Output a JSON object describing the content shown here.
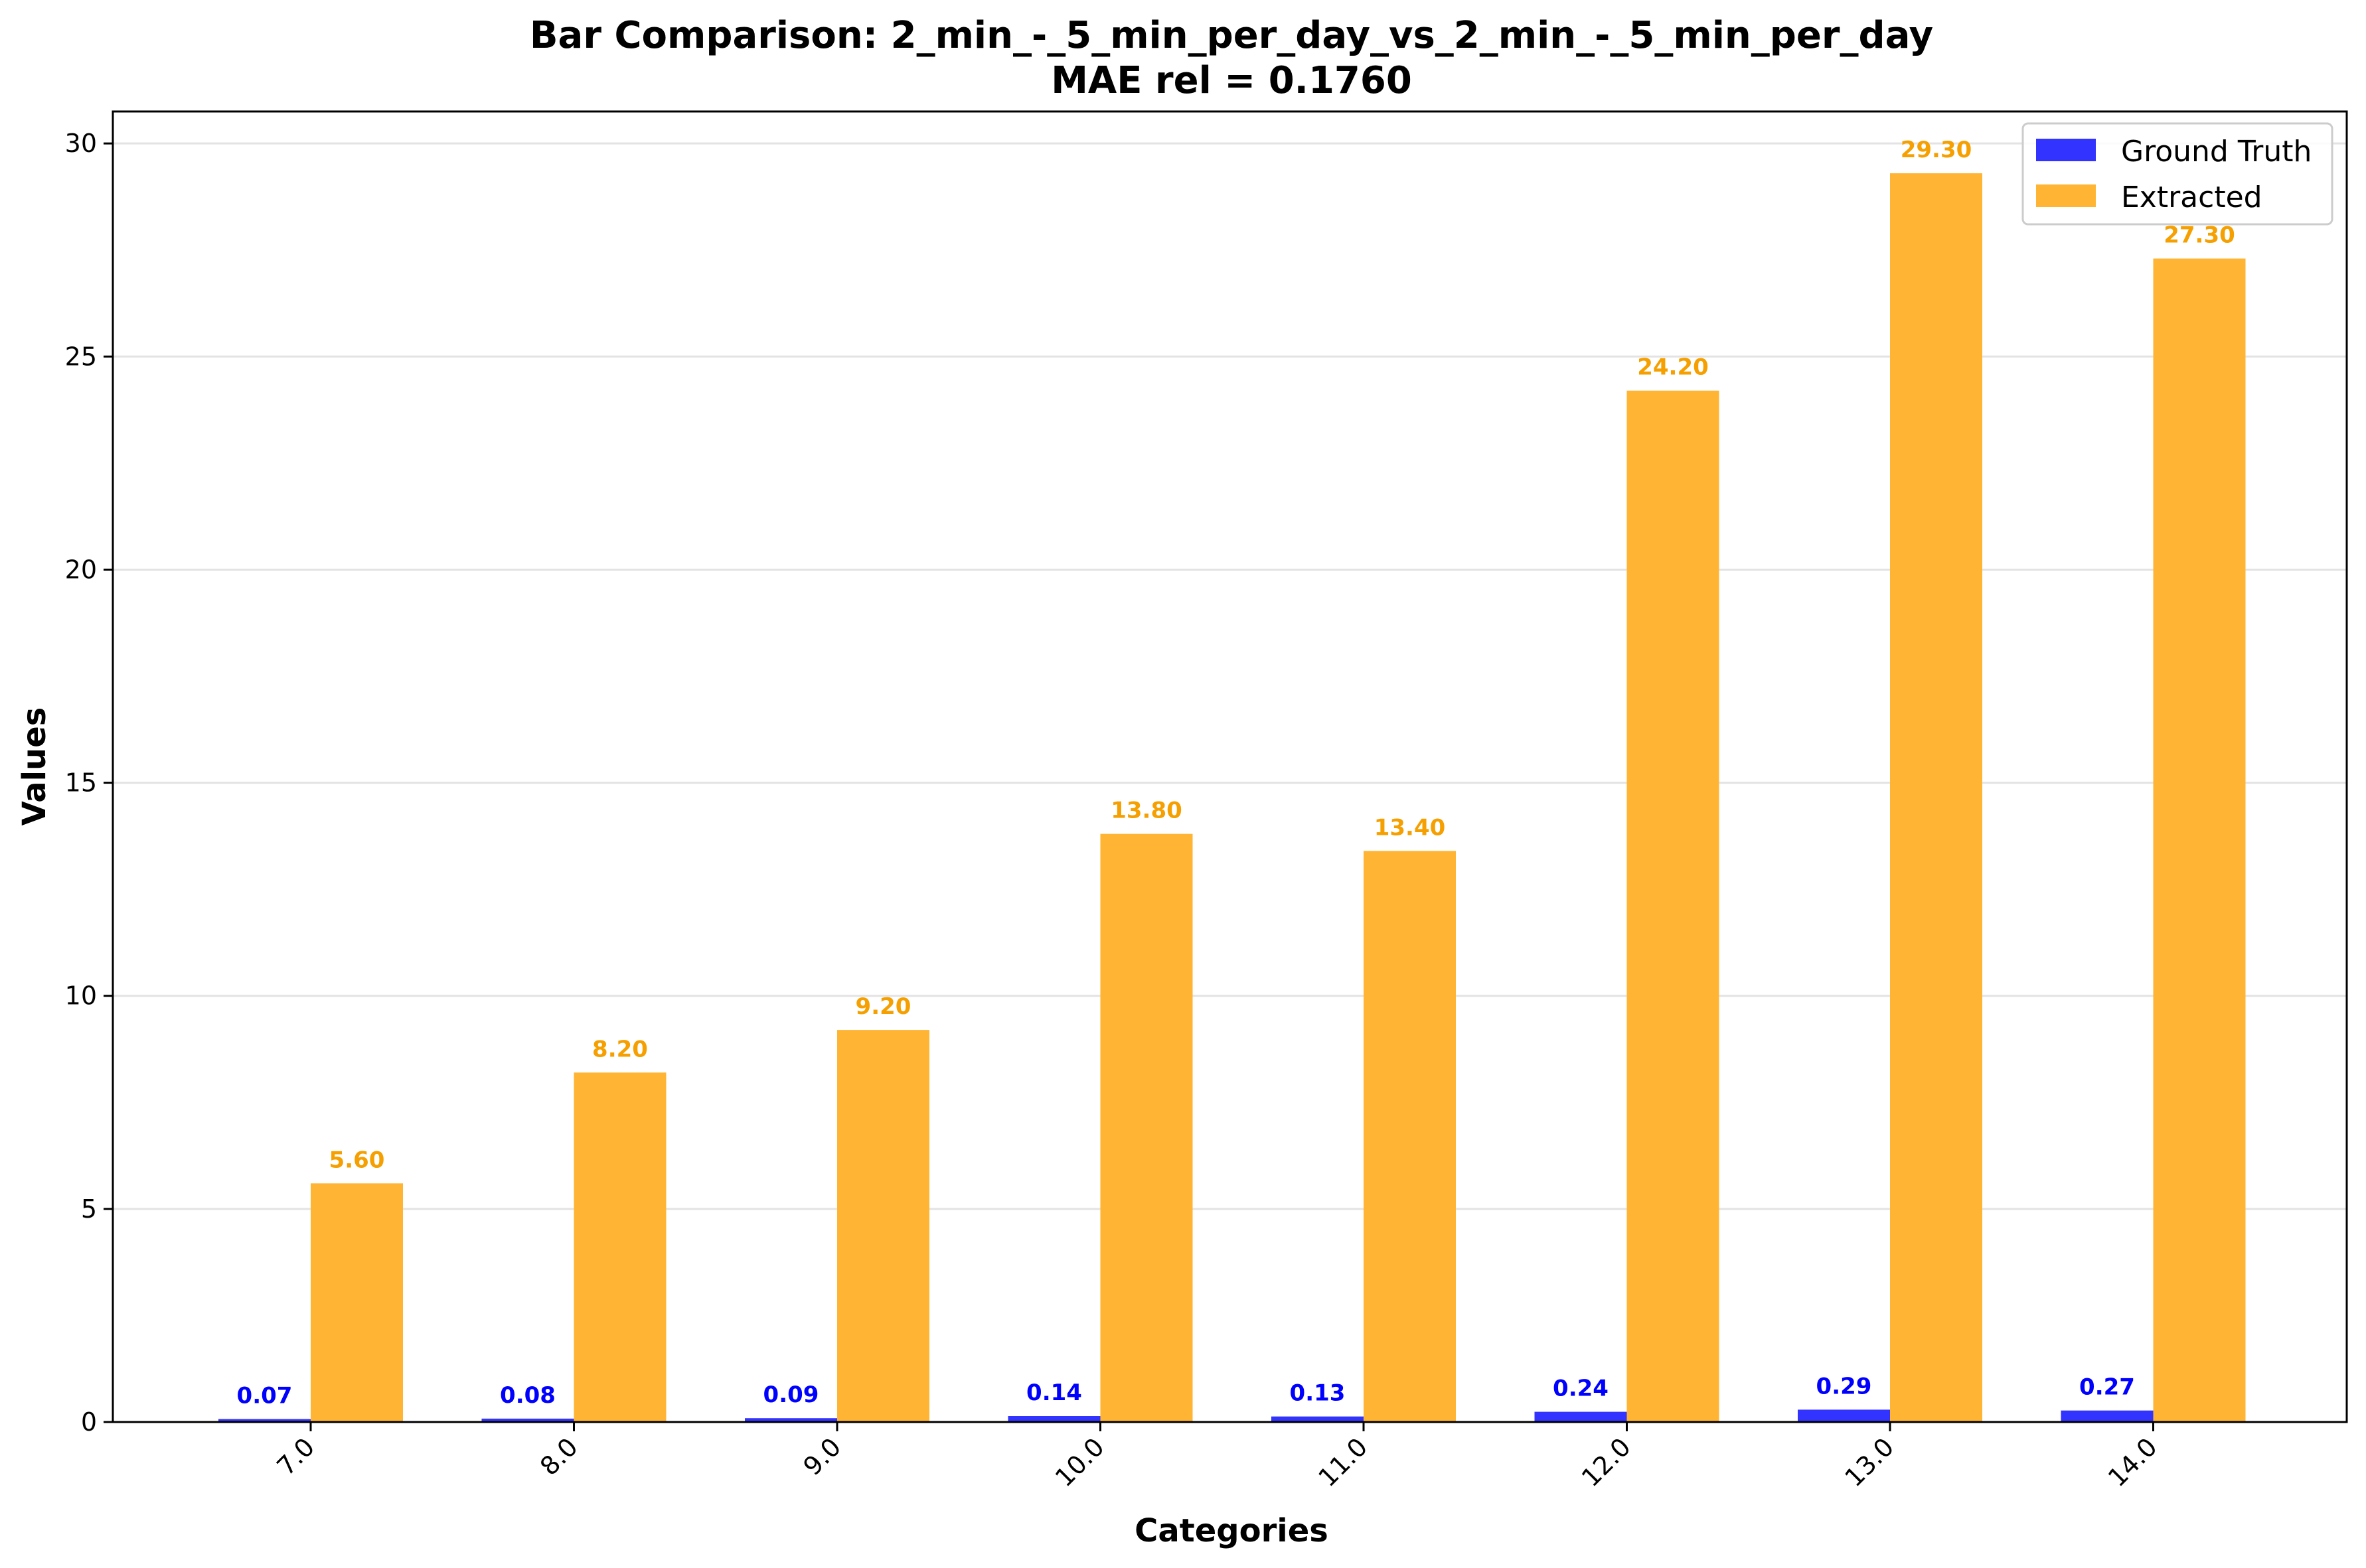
{
  "chart_data": {
    "type": "bar",
    "title": "Bar Comparison: 2_min_-_5_min_per_day_vs_2_min_-_5_min_per_day",
    "subtitle": "MAE rel = 0.1760",
    "xlabel": "Categories",
    "ylabel": "Values",
    "categories": [
      "7.0",
      "8.0",
      "9.0",
      "10.0",
      "11.0",
      "12.0",
      "13.0",
      "14.0"
    ],
    "series": [
      {
        "name": "Ground Truth",
        "color": "#3333ff",
        "label_color": "#0000ff",
        "values": [
          0.07,
          0.08,
          0.09,
          0.14,
          0.13,
          0.24,
          0.29,
          0.27
        ],
        "value_labels": [
          "0.07",
          "0.08",
          "0.09",
          "0.14",
          "0.13",
          "0.24",
          "0.29",
          "0.27"
        ]
      },
      {
        "name": "Extracted",
        "color": "#ffb533",
        "label_color": "#f5a000",
        "values": [
          5.6,
          8.2,
          9.2,
          13.8,
          13.4,
          24.2,
          29.3,
          27.3
        ],
        "value_labels": [
          "5.60",
          "8.20",
          "9.20",
          "13.80",
          "13.40",
          "24.20",
          "29.30",
          "27.30"
        ]
      }
    ],
    "ylim": [
      0,
      30.75
    ],
    "yticks": [
      0,
      5,
      10,
      15,
      20,
      25,
      30
    ],
    "ytick_labels": [
      "0",
      "5",
      "10",
      "15",
      "20",
      "25",
      "30"
    ],
    "grid": "horizontal",
    "legend_position": "top-right",
    "xtick_rotation": "45"
  }
}
